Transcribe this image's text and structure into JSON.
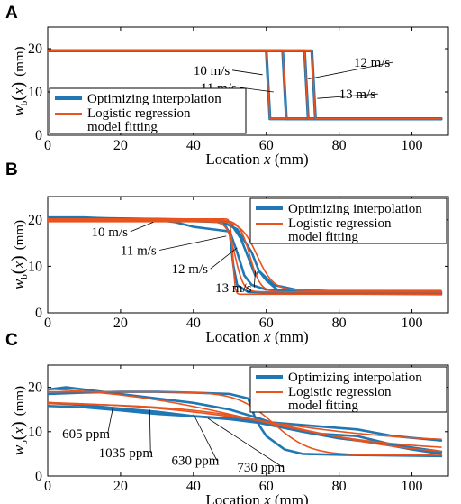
{
  "chart_data": [
    {
      "panel": "A",
      "type": "line",
      "xlabel_prefix": "Location ",
      "xlabel_var": "x",
      "xlabel_unit": " (mm)",
      "ylabel_w": "w",
      "ylabel_sub": "b",
      "ylabel_x": "x",
      "ylabel_unit": "(mm)",
      "xlim": [
        0,
        110
      ],
      "ylim": [
        0,
        25
      ],
      "xticks": [
        "0",
        "20",
        "40",
        "60",
        "80",
        "100"
      ],
      "xtick_values": [
        0,
        20,
        40,
        60,
        80,
        100
      ],
      "yticks": [
        "0",
        "10",
        "20"
      ],
      "ytick_values": [
        0,
        10,
        20
      ],
      "legend": [
        "Optimizing interpolation",
        "Logistic regression",
        "model fitting"
      ],
      "legend_position": "bottom-left",
      "colors": {
        "interp": "#1f77b4",
        "fit": "#e8531e"
      },
      "annotations": [
        {
          "text": "10 m/s",
          "x": 40,
          "y": 14,
          "ax": 59,
          "ay": 14
        },
        {
          "text": "11 m/s",
          "x": 42,
          "y": 10,
          "ax": 62,
          "ay": 10
        },
        {
          "text": "12 m/s",
          "x": 84,
          "y": 15.8,
          "ax": 71.5,
          "ay": 13
        },
        {
          "text": "13 m/s",
          "x": 80,
          "y": 8.5,
          "ax": 74,
          "ay": 8.5
        }
      ],
      "series": [
        {
          "y0": 19.5,
          "y1": 3.8,
          "x0": 0,
          "x1": 108,
          "transitions": [
            [
              60,
              19.5
            ],
            [
              61,
              3.8
            ]
          ]
        },
        {
          "y0": 19.5,
          "y1": 3.8,
          "x0": 0,
          "x1": 108,
          "transitions": [
            [
              64.5,
              19.5
            ],
            [
              65.5,
              3.8
            ]
          ]
        },
        {
          "y0": 19.5,
          "y1": 3.8,
          "x0": 0,
          "x1": 108,
          "transitions": [
            [
              70.5,
              19.5
            ],
            [
              71.5,
              3.8
            ]
          ]
        },
        {
          "y0": 19.5,
          "y1": 3.8,
          "x0": 0,
          "x1": 108,
          "transitions": [
            [
              72.5,
              19.5
            ],
            [
              73.5,
              3.8
            ]
          ]
        }
      ]
    },
    {
      "panel": "B",
      "type": "line",
      "xlabel_prefix": "Location ",
      "xlabel_var": "x",
      "xlabel_unit": " (mm)",
      "ylabel_w": "w",
      "ylabel_sub": "b",
      "ylabel_x": "x",
      "ylabel_unit": "(mm)",
      "xlim": [
        0,
        110
      ],
      "ylim": [
        0,
        25
      ],
      "xticks": [
        "0",
        "20",
        "40",
        "60",
        "80",
        "100"
      ],
      "xtick_values": [
        0,
        20,
        40,
        60,
        80,
        100
      ],
      "yticks": [
        "0",
        "10",
        "20"
      ],
      "ytick_values": [
        0,
        10,
        20
      ],
      "legend": [
        "Optimizing interpolation",
        "Logistic regression",
        "model fitting"
      ],
      "legend_position": "top-right",
      "colors": {
        "interp": "#1f77b4",
        "fit": "#e8531e"
      },
      "annotations": [
        {
          "text": "10 m/s",
          "x": 12,
          "y": 16.5,
          "ax": 29,
          "ay": 19.5
        },
        {
          "text": "11 m/s",
          "x": 20,
          "y": 12.5,
          "ax": 49,
          "ay": 16.5
        },
        {
          "text": "12 m/s",
          "x": 34,
          "y": 8.5,
          "ax": 52,
          "ay": 14
        },
        {
          "text": "13 m/s",
          "x": 46,
          "y": 4.5,
          "ax": 57,
          "ay": 9
        }
      ],
      "interp_series": [
        [
          [
            0,
            20.5
          ],
          [
            10,
            20.5
          ],
          [
            20,
            20.2
          ],
          [
            30,
            20
          ],
          [
            35,
            19.5
          ],
          [
            40,
            18.5
          ],
          [
            45,
            18
          ],
          [
            50,
            17.5
          ],
          [
            52,
            13
          ],
          [
            54,
            8
          ],
          [
            56,
            6
          ],
          [
            60,
            5
          ],
          [
            70,
            4.5
          ],
          [
            90,
            4.3
          ],
          [
            108,
            4.2
          ]
        ],
        [
          [
            0,
            20.4
          ],
          [
            20,
            20.3
          ],
          [
            40,
            20
          ],
          [
            48,
            19.8
          ],
          [
            50,
            17
          ],
          [
            51,
            10
          ],
          [
            52,
            6
          ],
          [
            55,
            4.5
          ],
          [
            70,
            4.2
          ],
          [
            108,
            4
          ]
        ],
        [
          [
            0,
            20.3
          ],
          [
            30,
            20.2
          ],
          [
            45,
            20
          ],
          [
            50,
            19.5
          ],
          [
            53,
            16
          ],
          [
            55,
            12
          ],
          [
            57,
            8
          ],
          [
            58,
            9
          ],
          [
            60,
            7
          ],
          [
            63,
            5
          ],
          [
            70,
            4.5
          ],
          [
            108,
            4.3
          ]
        ],
        [
          [
            0,
            20.2
          ],
          [
            30,
            20
          ],
          [
            48,
            19.5
          ],
          [
            52,
            18
          ],
          [
            56,
            13
          ],
          [
            58,
            9
          ],
          [
            62,
            6
          ],
          [
            68,
            5
          ],
          [
            80,
            4.6
          ],
          [
            108,
            4.5
          ]
        ]
      ],
      "fit_series": [
        {
          "a": 19.6,
          "b": 4.5,
          "x0": 51.5,
          "k": 0.9
        },
        {
          "a": 20.2,
          "b": 4.0,
          "x0": 50.8,
          "k": 3.5
        },
        {
          "a": 20.0,
          "b": 4.5,
          "x0": 55.5,
          "k": 0.7
        },
        {
          "a": 19.8,
          "b": 4.8,
          "x0": 57.5,
          "k": 0.45
        }
      ]
    },
    {
      "panel": "C",
      "type": "line",
      "xlabel_prefix": "Location ",
      "xlabel_var": "x",
      "xlabel_unit": " (mm)",
      "ylabel_w": "w",
      "ylabel_sub": "b",
      "ylabel_x": "x",
      "ylabel_unit": "(mm)",
      "xlim": [
        0,
        110
      ],
      "ylim": [
        0,
        25
      ],
      "xticks": [
        "0",
        "20",
        "40",
        "60",
        "80",
        "100"
      ],
      "xtick_values": [
        0,
        20,
        40,
        60,
        80,
        100
      ],
      "yticks": [
        "0",
        "10",
        "20"
      ],
      "ytick_values": [
        0,
        10,
        20
      ],
      "legend": [
        "Optimizing interpolation",
        "Logistic regression",
        "model fitting"
      ],
      "legend_position": "top-right",
      "colors": {
        "interp": "#1f77b4",
        "fit": "#e8531e"
      },
      "annotations": [
        {
          "text": "605 ppm",
          "x": 4,
          "y": 8.5,
          "ax": 18,
          "ay": 15.8
        },
        {
          "text": "1035 ppm",
          "x": 14,
          "y": 4.3,
          "ax": 28,
          "ay": 15
        },
        {
          "text": "630 ppm",
          "x": 34,
          "y": 2.5,
          "ax": 40,
          "ay": 14
        },
        {
          "text": "730 ppm",
          "x": 52,
          "y": 1,
          "ax": 44,
          "ay": 13
        }
      ],
      "interp_series": [
        [
          [
            0,
            19.5
          ],
          [
            5,
            20
          ],
          [
            10,
            19.5
          ],
          [
            20,
            18.5
          ],
          [
            30,
            17.5
          ],
          [
            40,
            16.5
          ],
          [
            50,
            15
          ],
          [
            58,
            13
          ],
          [
            65,
            11
          ],
          [
            75,
            9.5
          ],
          [
            85,
            9
          ],
          [
            95,
            7
          ],
          [
            108,
            5.5
          ]
        ],
        [
          [
            0,
            16.5
          ],
          [
            10,
            16
          ],
          [
            20,
            15.2
          ],
          [
            30,
            14.5
          ],
          [
            40,
            13.5
          ],
          [
            50,
            13
          ],
          [
            58,
            12.3
          ],
          [
            70,
            11.5
          ],
          [
            85,
            10.5
          ],
          [
            95,
            9
          ],
          [
            108,
            8
          ]
        ],
        [
          [
            0,
            15.8
          ],
          [
            10,
            15.5
          ],
          [
            20,
            14.8
          ],
          [
            30,
            14
          ],
          [
            40,
            13.5
          ],
          [
            50,
            12.8
          ],
          [
            58,
            12
          ],
          [
            70,
            10
          ],
          [
            80,
            8.5
          ],
          [
            90,
            7.5
          ],
          [
            100,
            6
          ],
          [
            108,
            5
          ]
        ],
        [
          [
            0,
            18.5
          ],
          [
            10,
            18.8
          ],
          [
            20,
            19
          ],
          [
            30,
            19
          ],
          [
            40,
            18.8
          ],
          [
            50,
            18.5
          ],
          [
            55,
            17.5
          ],
          [
            57,
            13
          ],
          [
            58,
            11.5
          ],
          [
            60,
            9
          ],
          [
            65,
            6
          ],
          [
            70,
            5
          ],
          [
            80,
            4.8
          ],
          [
            108,
            4.5
          ]
        ]
      ],
      "fit_series": [
        {
          "a": 20.5,
          "b": 5.5,
          "x0": 55,
          "k": 0.05
        },
        {
          "a": 17.0,
          "b": 7.5,
          "x0": 60,
          "k": 0.05
        },
        {
          "a": 16.5,
          "b": 4.5,
          "x0": 70,
          "k": 0.06
        },
        {
          "a": 19.0,
          "b": 4.7,
          "x0": 62,
          "k": 0.2
        }
      ]
    }
  ]
}
